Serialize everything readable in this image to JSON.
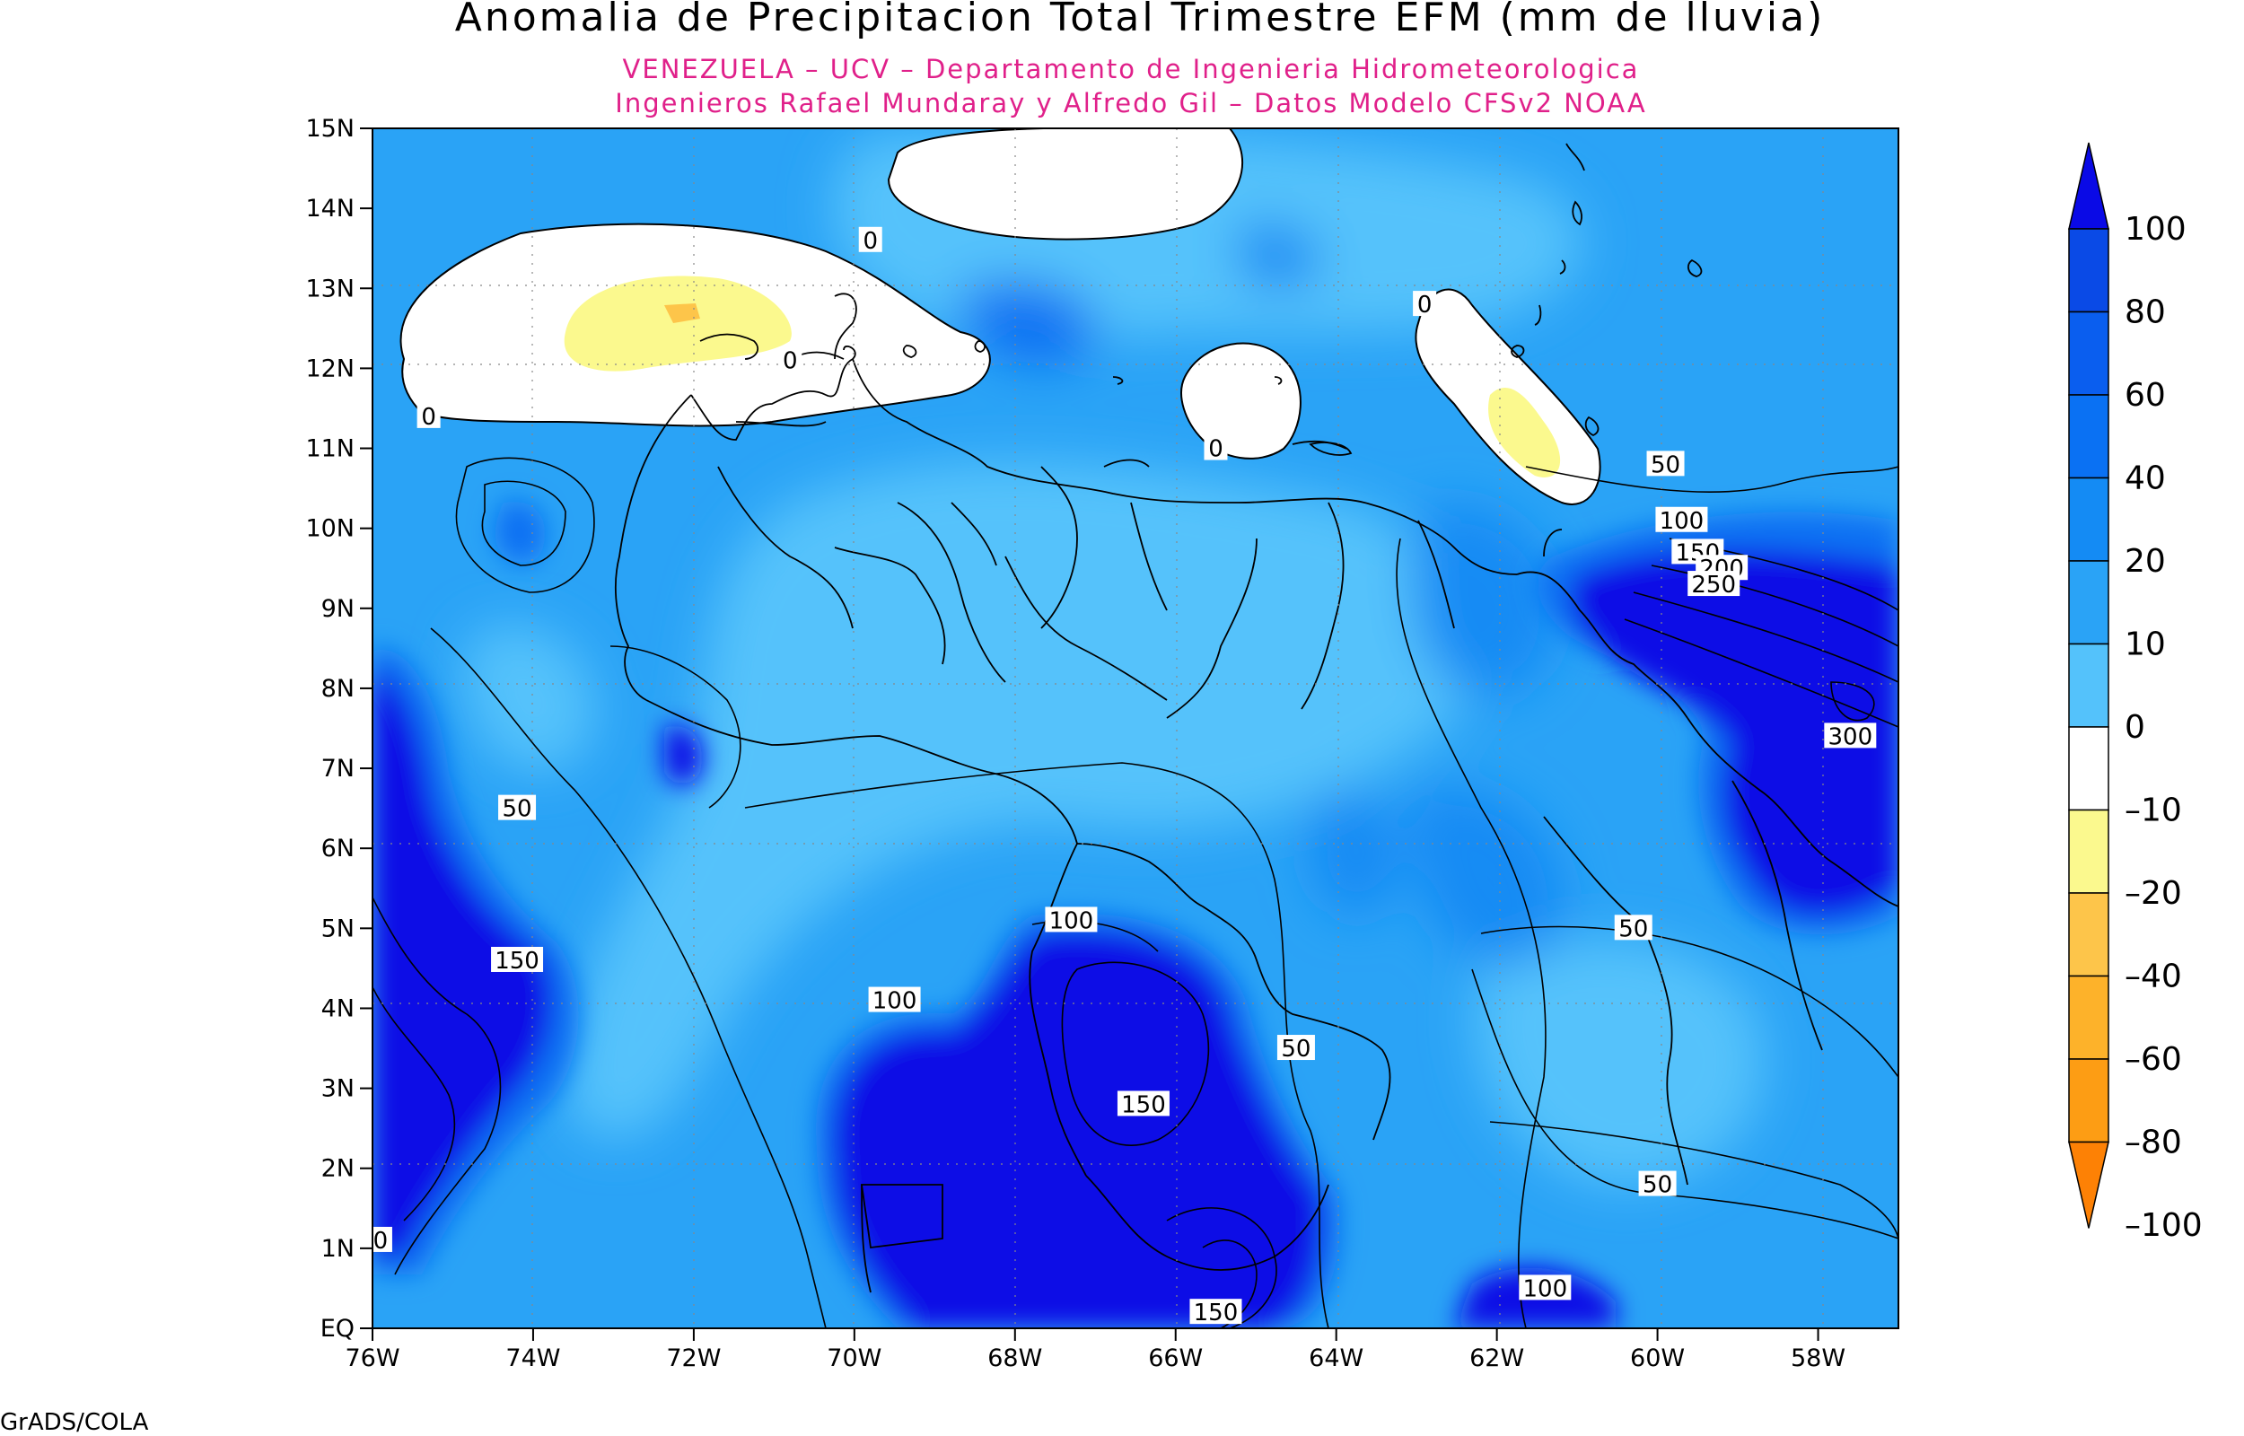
{
  "header": {
    "title": "Anomalia de Precipitacion Total Trimestre EFM (mm de lluvia)",
    "subtitle_1": "VENEZUELA – UCV – Departamento de Ingenieria Hidrometeorologica",
    "subtitle_2": "Ingenieros Rafael Mundaray y Alfredo Gil – Datos Modelo CFSv2 NOAA"
  },
  "axes": {
    "y_ticks": [
      "15N",
      "14N",
      "13N",
      "12N",
      "11N",
      "10N",
      "9N",
      "8N",
      "7N",
      "6N",
      "5N",
      "4N",
      "3N",
      "2N",
      "1N",
      "EQ"
    ],
    "x_ticks": [
      "76W",
      "74W",
      "72W",
      "70W",
      "68W",
      "66W",
      "64W",
      "62W",
      "60W",
      "58W"
    ]
  },
  "contour_labels": [
    {
      "text": "0",
      "lon": -62.9,
      "lat": 12.8
    },
    {
      "text": "0",
      "lon": -69.8,
      "lat": 13.6
    },
    {
      "text": "0",
      "lon": -70.8,
      "lat": 12.1
    },
    {
      "text": "0",
      "lon": -75.3,
      "lat": 11.4
    },
    {
      "text": "0",
      "lon": -65.5,
      "lat": 11.0
    },
    {
      "text": "50",
      "lon": -59.9,
      "lat": 10.8
    },
    {
      "text": "100",
      "lon": -59.7,
      "lat": 10.1
    },
    {
      "text": "150",
      "lon": -59.5,
      "lat": 9.7
    },
    {
      "text": "200",
      "lon": -59.2,
      "lat": 9.5
    },
    {
      "text": "250",
      "lon": -59.3,
      "lat": 9.3
    },
    {
      "text": "300",
      "lon": -57.6,
      "lat": 7.4
    },
    {
      "text": "50",
      "lon": -74.2,
      "lat": 6.5
    },
    {
      "text": "150",
      "lon": -74.2,
      "lat": 4.6
    },
    {
      "text": "100",
      "lon": -67.3,
      "lat": 5.1
    },
    {
      "text": "100",
      "lon": -69.5,
      "lat": 4.1
    },
    {
      "text": "150",
      "lon": -66.4,
      "lat": 2.8
    },
    {
      "text": "50",
      "lon": -64.5,
      "lat": 3.5
    },
    {
      "text": "50",
      "lon": -60.3,
      "lat": 5.0
    },
    {
      "text": "50",
      "lon": -60.0,
      "lat": 1.8
    },
    {
      "text": "100",
      "lon": -61.4,
      "lat": 0.5
    },
    {
      "text": "150",
      "lon": -65.5,
      "lat": 0.2
    },
    {
      "text": "0",
      "lon": -75.9,
      "lat": 1.1
    }
  ],
  "legend": {
    "labels": [
      "100",
      "80",
      "60",
      "40",
      "20",
      "10",
      "0",
      "–10",
      "–20",
      "–40",
      "–60",
      "–80",
      "–100"
    ],
    "colors": [
      "#0a0ae6",
      "#0a4ae6",
      "#0a5eef",
      "#0a71f3",
      "#148bf4",
      "#2aa3f6",
      "#54c2fb",
      "#ffffff",
      "#fbf98e",
      "#fdc54a",
      "#fdb22a",
      "#fd9d14",
      "#fd8105"
    ]
  },
  "credit": "GrADS/COLA"
}
